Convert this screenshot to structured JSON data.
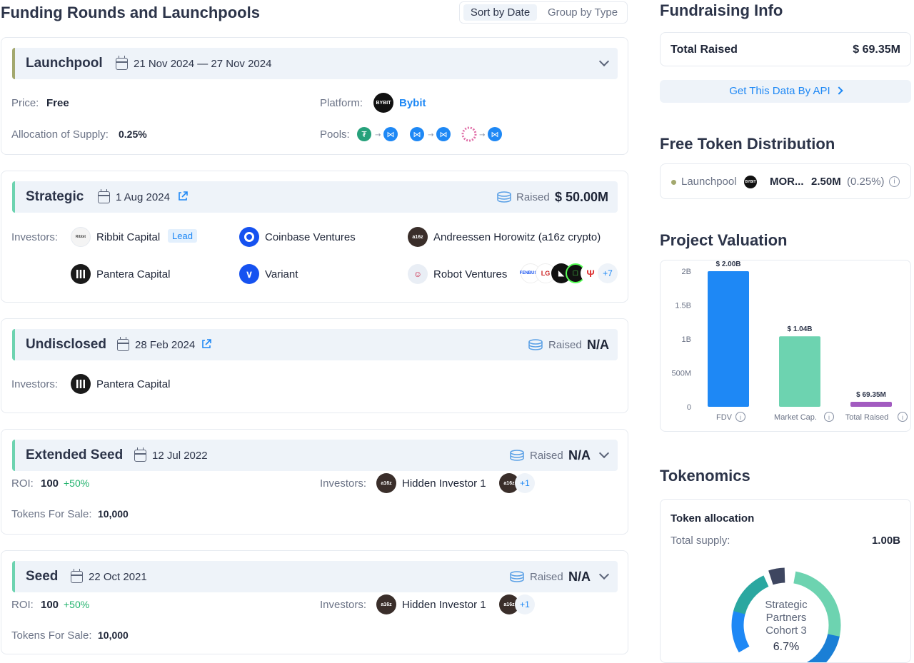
{
  "left": {
    "title": "Funding Rounds and Launchpools",
    "sort_tabs": [
      "Sort by Date",
      "Group by Type"
    ],
    "raised_label": "Raised",
    "launchpool": {
      "title": "Launchpool",
      "date": "21 Nov 2024 — 27 Nov 2024",
      "price_label": "Price:",
      "price": "Free",
      "platform_label": "Platform:",
      "platform": "Bybit",
      "platform_logo": "BYBIT",
      "allocation_label": "Allocation of Supply:",
      "allocation": "0.25%",
      "pools_label": "Pools:"
    },
    "strategic": {
      "title": "Strategic",
      "date": "1 Aug 2024",
      "raised": "$ 50.00M",
      "investors_label": "Investors:",
      "investors": [
        "Ribbit Capital",
        "Coinbase Ventures",
        "Andreessen Horowitz (a16z crypto)",
        "Pantera Capital",
        "Variant",
        "Robot Ventures"
      ],
      "lead_badge": "Lead",
      "more": "+7"
    },
    "undisclosed": {
      "title": "Undisclosed",
      "date": "28 Feb 2024",
      "raised": "N/A",
      "investors_label": "Investors:",
      "investors": [
        "Pantera Capital"
      ]
    },
    "extended_seed": {
      "title": "Extended Seed",
      "date": "12 Jul 2022",
      "raised": "N/A",
      "roi_label": "ROI:",
      "roi": "100",
      "roi_change": "+50%",
      "investors_label": "Investors:",
      "investor": "Hidden Investor 1",
      "more": "+1",
      "tokens_label": "Tokens For Sale:",
      "tokens": "10,000"
    },
    "seed": {
      "title": "Seed",
      "date": "22 Oct 2021",
      "raised": "N/A",
      "roi_label": "ROI:",
      "roi": "100",
      "roi_change": "+50%",
      "investors_label": "Investors:",
      "investor": "Hidden Investor 1",
      "more": "+1",
      "tokens_label": "Tokens For Sale:",
      "tokens": "10,000"
    }
  },
  "right": {
    "fundraising_title": "Fundraising Info",
    "total_raised_label": "Total Raised",
    "total_raised": "$ 69.35M",
    "api_button": "Get This Data By API",
    "distribution_title": "Free Token Distribution",
    "distribution": {
      "label": "Launchpool",
      "token": "MOR...",
      "amount": "2.50M",
      "pct": "(0.25%)"
    },
    "valuation_title": "Project Valuation",
    "tokenomics_title": "Tokenomics",
    "allocation_title": "Token allocation",
    "supply_label": "Total supply:",
    "supply": "1.00B",
    "donut_label_1": "Strategic",
    "donut_label_2": "Partners",
    "donut_label_3": "Cohort 3",
    "donut_pct": "6.7%"
  },
  "chart_data": {
    "type": "bar",
    "categories": [
      "FDV",
      "Market Cap.",
      "Total Raised"
    ],
    "values": [
      2000,
      1040,
      69.35
    ],
    "units": "M",
    "data_labels": [
      "$ 2.00B",
      "$ 1.04B",
      "$ 69.35M"
    ],
    "y_ticks": [
      "0",
      "500M",
      "1B",
      "1.5B",
      "2B"
    ],
    "ylim": [
      0,
      2000
    ],
    "colors": [
      "#1e88f5",
      "#6dd3b0",
      "#a25bc0"
    ],
    "grid": false
  },
  "colors": {
    "accent_blue": "#1e88f5",
    "accent_green": "#6dd3b0",
    "positive": "#20b26c",
    "launchpool_bar": "#a3a86e"
  }
}
